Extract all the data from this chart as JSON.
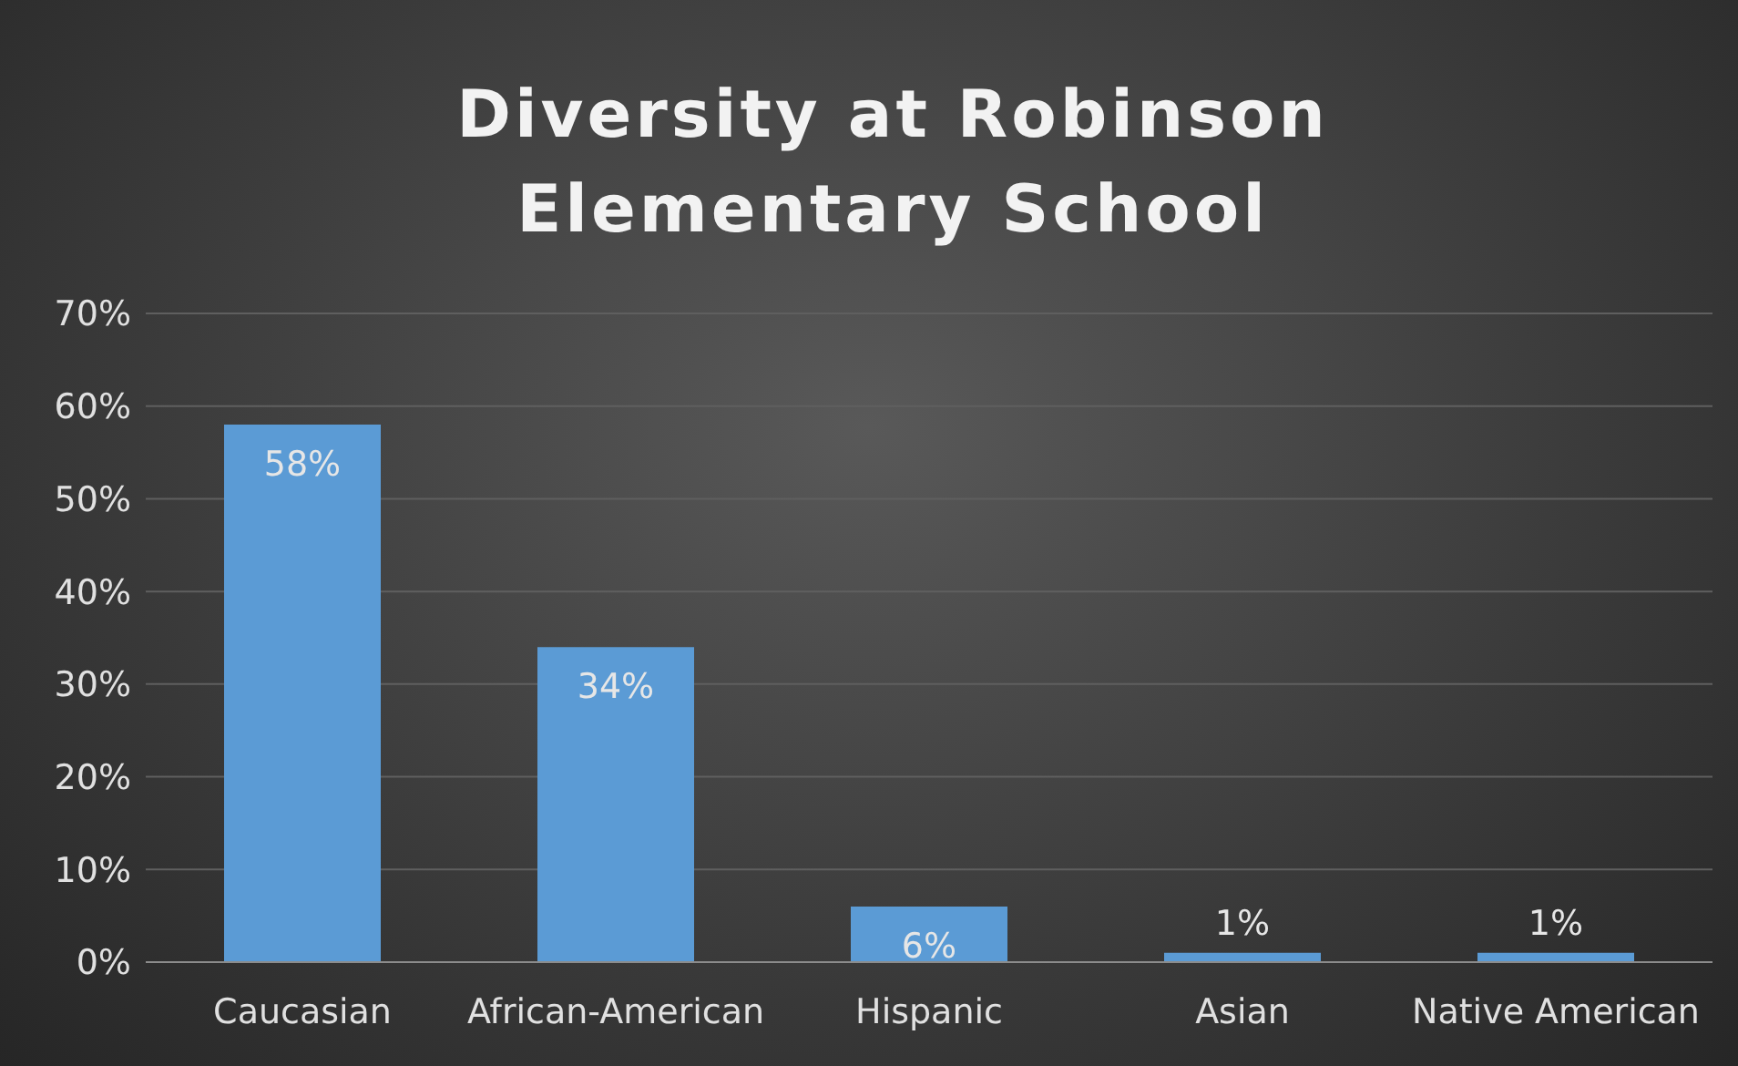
{
  "chart_data": {
    "type": "bar",
    "title": "Diversity at Robinson Elementary School",
    "categories": [
      "Caucasian",
      "African-American",
      "Hispanic",
      "Asian",
      "Native American"
    ],
    "values": [
      58,
      34,
      6,
      1,
      1
    ],
    "value_labels": [
      "58%",
      "34%",
      "6%",
      "1%",
      "1%"
    ],
    "color": "#5b9bd5",
    "ylim": [
      0,
      70
    ],
    "yticks": [
      {
        "value": 0,
        "label": "0%"
      },
      {
        "value": 10,
        "label": "10%"
      },
      {
        "value": 20,
        "label": "20%"
      },
      {
        "value": 30,
        "label": "30%"
      },
      {
        "value": 40,
        "label": "40%"
      },
      {
        "value": 50,
        "label": "50%"
      },
      {
        "value": 60,
        "label": "60%"
      },
      {
        "value": 70,
        "label": "70%"
      }
    ],
    "grid": "y"
  }
}
